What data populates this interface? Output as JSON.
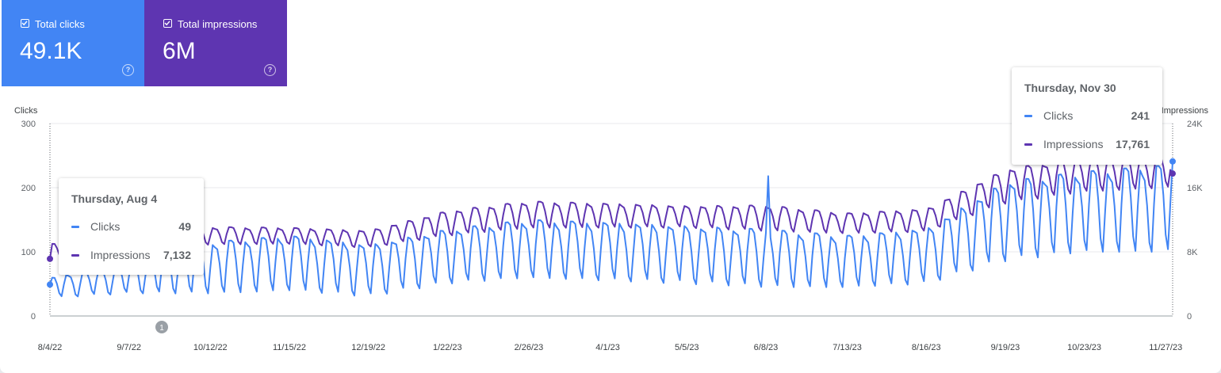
{
  "metrics": [
    {
      "label": "Total clicks",
      "value": "49.1K",
      "color": "#4285f4"
    },
    {
      "label": "Total impressions",
      "value": "6M",
      "color": "#5e35b1"
    }
  ],
  "chart_data": {
    "type": "line",
    "x_ticks": [
      "8/4/22",
      "9/7/22",
      "10/12/22",
      "11/15/22",
      "12/19/22",
      "1/22/23",
      "2/26/23",
      "4/1/23",
      "5/5/23",
      "6/8/23",
      "7/13/23",
      "8/16/23",
      "9/19/23",
      "10/23/23",
      "11/27/23"
    ],
    "left_axis": {
      "label": "Clicks",
      "ticks": [
        "0",
        "100",
        "200",
        "300"
      ],
      "range": [
        0,
        300
      ]
    },
    "right_axis": {
      "label": "Impressions",
      "ticks": [
        "0",
        "8K",
        "16K",
        "24K"
      ],
      "range": [
        0,
        24000
      ]
    },
    "x_range": [
      "8/4/22",
      "11/30/23"
    ],
    "annotation": "1",
    "series": [
      {
        "name": "Clicks",
        "color": "#4285f4",
        "knots": [
          {
            "date": "8/4/22",
            "low": 28,
            "high": 60
          },
          {
            "date": "9/7/22",
            "low": 35,
            "high": 80
          },
          {
            "date": "10/12/22",
            "low": 35,
            "high": 115
          },
          {
            "date": "11/15/22",
            "low": 40,
            "high": 125
          },
          {
            "date": "12/19/22",
            "low": 30,
            "high": 110
          },
          {
            "date": "1/22/23",
            "low": 50,
            "high": 135
          },
          {
            "date": "2/26/23",
            "low": 60,
            "high": 150
          },
          {
            "date": "4/1/23",
            "low": 55,
            "high": 145
          },
          {
            "date": "5/5/23",
            "low": 50,
            "high": 140
          },
          {
            "date": "6/8/23",
            "low": 45,
            "high": 135
          },
          {
            "date": "7/13/23",
            "low": 45,
            "high": 125
          },
          {
            "date": "8/16/23",
            "low": 50,
            "high": 135
          },
          {
            "date": "9/19/23",
            "low": 85,
            "high": 210
          },
          {
            "date": "10/23/23",
            "low": 100,
            "high": 225
          },
          {
            "date": "11/27/23",
            "low": 100,
            "high": 235
          }
        ],
        "spike": {
          "date": "6/9/23",
          "value": 218
        }
      },
      {
        "name": "Impressions",
        "color": "#5e35b1",
        "knots": [
          {
            "date": "8/4/22",
            "low": 7100,
            "high": 9000
          },
          {
            "date": "9/7/22",
            "low": 8500,
            "high": 10500
          },
          {
            "date": "10/12/22",
            "low": 8900,
            "high": 11100
          },
          {
            "date": "11/15/22",
            "low": 9000,
            "high": 11000
          },
          {
            "date": "12/19/22",
            "low": 8500,
            "high": 10600
          },
          {
            "date": "1/22/23",
            "low": 10000,
            "high": 13100
          },
          {
            "date": "2/26/23",
            "low": 11000,
            "high": 14300
          },
          {
            "date": "4/1/23",
            "low": 11000,
            "high": 14000
          },
          {
            "date": "5/5/23",
            "low": 11000,
            "high": 13700
          },
          {
            "date": "6/8/23",
            "low": 10600,
            "high": 13800
          },
          {
            "date": "7/13/23",
            "low": 10300,
            "high": 12800
          },
          {
            "date": "8/16/23",
            "low": 10500,
            "high": 13300
          },
          {
            "date": "9/19/23",
            "low": 14000,
            "high": 18300
          },
          {
            "date": "10/23/23",
            "low": 15500,
            "high": 19800
          },
          {
            "date": "11/27/23",
            "low": 16000,
            "high": 20000
          }
        ]
      }
    ],
    "tooltips": [
      {
        "date": "Thursday, Aug 4",
        "rows": [
          {
            "label": "Clicks",
            "value": "49"
          },
          {
            "label": "Impressions",
            "value": "7,132"
          }
        ]
      },
      {
        "date": "Thursday, Nov 30",
        "rows": [
          {
            "label": "Clicks",
            "value": "241"
          },
          {
            "label": "Impressions",
            "value": "17,761"
          }
        ]
      }
    ]
  }
}
